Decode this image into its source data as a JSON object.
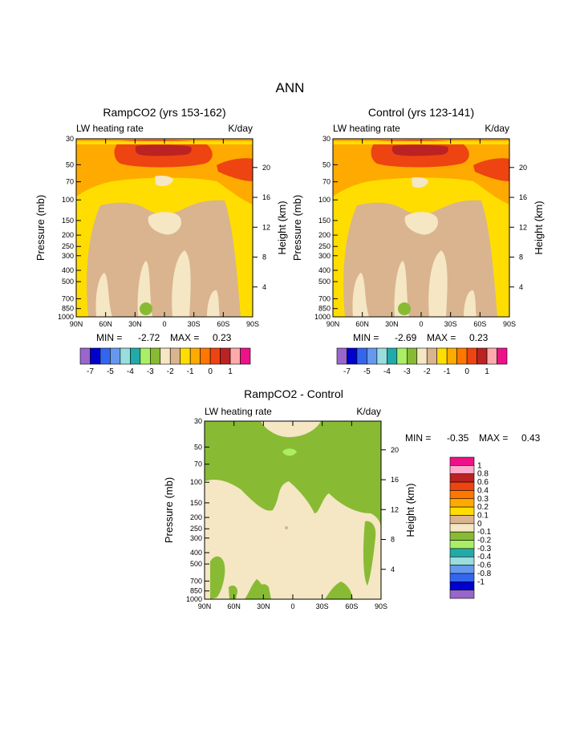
{
  "page": {
    "title": "ANN"
  },
  "chart_data": [
    {
      "type": "heatmap",
      "title": "RampCO2 (yrs 153-162)",
      "field_label": "LW heating rate",
      "units": "K/day",
      "xlabel": "",
      "ylabel": "Pressure (mb)",
      "y2label": "Height (km)",
      "x_ticks": [
        "90N",
        "60N",
        "30N",
        "0",
        "30S",
        "60S",
        "90S"
      ],
      "y_ticks": [
        "30",
        "50",
        "70",
        "100",
        "150",
        "200",
        "250",
        "300",
        "400",
        "500",
        "700",
        "850",
        "1000"
      ],
      "y2_ticks": [
        "20",
        "16",
        "12",
        "8",
        "4"
      ],
      "stats": {
        "min_label": "MIN =",
        "min": "-2.72",
        "max_label": "MAX =",
        "max": "0.23"
      },
      "colorbar_labels": [
        "-7",
        "-5",
        "-4",
        "-3",
        "-2",
        "-1",
        "0",
        "1"
      ],
      "colorbar_colors": [
        "#9966cc",
        "#0000cc",
        "#3366ee",
        "#6699ee",
        "#99dddd",
        "#22aaaa",
        "#aaee66",
        "#88bb33",
        "#f5e6c4",
        "#d9b48f",
        "#ffdd00",
        "#ffaa00",
        "#ff7700",
        "#ee4411",
        "#bb2222",
        "#ffaaaa",
        "#ee1188"
      ]
    },
    {
      "type": "heatmap",
      "title": "Control (yrs 123-141)",
      "field_label": "LW heating rate",
      "units": "K/day",
      "xlabel": "",
      "ylabel": "Pressure (mb)",
      "y2label": "Height (km)",
      "x_ticks": [
        "90N",
        "60N",
        "30N",
        "0",
        "30S",
        "60S",
        "90S"
      ],
      "y_ticks": [
        "30",
        "50",
        "70",
        "100",
        "150",
        "200",
        "250",
        "300",
        "400",
        "500",
        "700",
        "850",
        "1000"
      ],
      "y2_ticks": [
        "20",
        "16",
        "12",
        "8",
        "4"
      ],
      "stats": {
        "min_label": "MIN =",
        "min": "-2.69",
        "max_label": "MAX =",
        "max": "0.23"
      },
      "colorbar_labels": [
        "-7",
        "-5",
        "-4",
        "-3",
        "-2",
        "-1",
        "0",
        "1"
      ],
      "colorbar_colors": [
        "#9966cc",
        "#0000cc",
        "#3366ee",
        "#6699ee",
        "#99dddd",
        "#22aaaa",
        "#aaee66",
        "#88bb33",
        "#f5e6c4",
        "#d9b48f",
        "#ffdd00",
        "#ffaa00",
        "#ff7700",
        "#ee4411",
        "#bb2222",
        "#ffaaaa",
        "#ee1188"
      ]
    },
    {
      "type": "heatmap",
      "title": "RampCO2 - Control",
      "field_label": "LW heating rate",
      "units": "K/day",
      "xlabel": "",
      "ylabel": "Pressure (mb)",
      "y2label": "Height (km)",
      "x_ticks": [
        "90N",
        "60N",
        "30N",
        "0",
        "30S",
        "60S",
        "90S"
      ],
      "y_ticks": [
        "30",
        "50",
        "70",
        "100",
        "150",
        "200",
        "250",
        "300",
        "400",
        "500",
        "700",
        "850",
        "1000"
      ],
      "y2_ticks": [
        "20",
        "16",
        "12",
        "8",
        "4"
      ],
      "stats": {
        "min_label": "MIN =",
        "min": "-0.35",
        "max_label": "MAX =",
        "max": "0.43"
      },
      "colorbar_labels": [
        "1",
        "0.8",
        "0.6",
        "0.4",
        "0.3",
        "0.2",
        "0.1",
        "0",
        "-0.1",
        "-0.2",
        "-0.3",
        "-0.4",
        "-0.6",
        "-0.8",
        "-1"
      ],
      "colorbar_colors": [
        "#ee1188",
        "#ffaacc",
        "#bb2222",
        "#ee4411",
        "#ff7700",
        "#ffaa00",
        "#ffdd00",
        "#d9b48f",
        "#f5e6c4",
        "#88bb33",
        "#aaee66",
        "#22aaaa",
        "#99dddd",
        "#6699ee",
        "#3366ee",
        "#0000cc",
        "#9966cc"
      ]
    }
  ]
}
